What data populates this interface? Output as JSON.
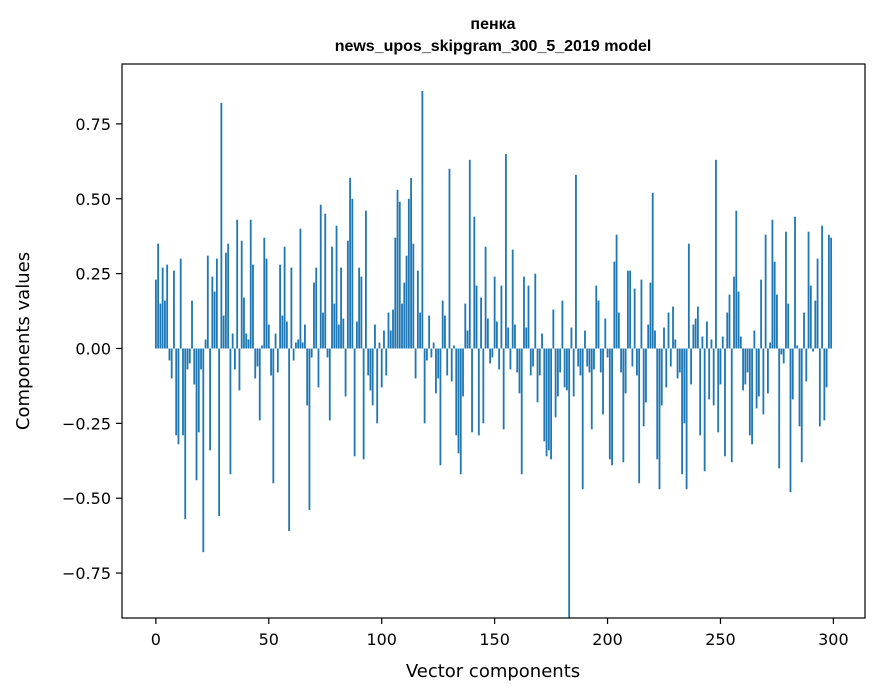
{
  "chart_data": {
    "type": "bar",
    "title": "пенка",
    "subtitle": "news_upos_skipgram_300_5_2019 model",
    "xlabel": "Vector components",
    "ylabel": "Components values",
    "xlim": [
      -15,
      314
    ],
    "ylim": [
      -0.9,
      0.95
    ],
    "x_ticks": [
      0,
      50,
      100,
      150,
      200,
      250,
      300
    ],
    "x_tick_labels": [
      "0",
      "50",
      "100",
      "150",
      "200",
      "250",
      "300"
    ],
    "y_ticks": [
      -0.75,
      -0.5,
      -0.25,
      0.0,
      0.25,
      0.5,
      0.75
    ],
    "y_tick_labels": [
      "−0.75",
      "−0.50",
      "−0.25",
      "0.00",
      "0.25",
      "0.50",
      "0.75"
    ],
    "bar_color": "#1f77b4",
    "values": [
      0.23,
      0.35,
      0.15,
      0.27,
      0.16,
      0.28,
      -0.04,
      -0.1,
      0.26,
      -0.29,
      -0.32,
      0.3,
      -0.29,
      -0.57,
      -0.07,
      -0.05,
      0.16,
      -0.12,
      -0.44,
      -0.28,
      -0.07,
      -0.68,
      0.03,
      0.31,
      -0.34,
      0.24,
      0.19,
      0.3,
      -0.56,
      0.82,
      0.11,
      0.32,
      0.35,
      -0.42,
      0.05,
      -0.07,
      0.43,
      -0.14,
      0.36,
      0.17,
      0.05,
      0.03,
      0.43,
      0.28,
      -0.1,
      -0.06,
      -0.24,
      0.01,
      0.37,
      0.3,
      0.08,
      -0.09,
      -0.45,
      0.05,
      -0.08,
      0.28,
      0.11,
      0.34,
      0.09,
      -0.61,
      0.27,
      -0.04,
      0.02,
      0.03,
      0.4,
      0.02,
      0.08,
      -0.19,
      -0.54,
      -0.03,
      0.22,
      0.27,
      -0.13,
      0.48,
      0.12,
      0.45,
      -0.03,
      -0.24,
      0.34,
      0.15,
      0.41,
      0.08,
      0.27,
      0.1,
      -0.16,
      0.36,
      0.57,
      0.5,
      -0.36,
      0.09,
      0.27,
      0.24,
      -0.37,
      0.46,
      -0.09,
      -0.14,
      -0.19,
      0.08,
      -0.25,
      0.02,
      -0.13,
      0.06,
      -0.09,
      0.12,
      0.06,
      0.13,
      0.37,
      0.53,
      0.49,
      0.15,
      0.22,
      0.31,
      0.5,
      0.57,
      0.35,
      -0.1,
      0.26,
      0.12,
      0.86,
      -0.25,
      -0.04,
      0.11,
      -0.03,
      0.02,
      -0.15,
      -0.1,
      -0.39,
      0.16,
      0.11,
      -0.09,
      0.6,
      -0.11,
      0.01,
      -0.29,
      -0.35,
      -0.42,
      -0.16,
      0.15,
      0.06,
      0.63,
      -0.28,
      0.44,
      0.21,
      -0.29,
      0.17,
      -0.25,
      0.34,
      0.1,
      -0.05,
      -0.03,
      0.24,
      0.09,
      -0.07,
      0.21,
      -0.27,
      0.65,
      0.07,
      -0.07,
      0.33,
      0.08,
      -0.08,
      -0.15,
      -0.42,
      0.24,
      0.07,
      0.21,
      -0.09,
      -0.06,
      0.25,
      -0.18,
      -0.09,
      0.05,
      -0.31,
      -0.36,
      -0.34,
      -0.37,
      0.13,
      -0.23,
      -0.16,
      -0.08,
      0.16,
      -0.13,
      -0.14,
      -0.9,
      0.07,
      -0.16,
      0.58,
      -0.06,
      -0.09,
      -0.47,
      0.06,
      -0.06,
      -0.08,
      -0.27,
      -0.07,
      0.21,
      0.16,
      -0.08,
      -0.22,
      0.1,
      -0.03,
      -0.37,
      -0.39,
      0.29,
      0.38,
      0.12,
      -0.08,
      -0.38,
      -0.15,
      0.26,
      0.26,
      -0.06,
      0.2,
      -0.09,
      -0.45,
      0.23,
      -0.26,
      -0.18,
      0.08,
      0.22,
      0.52,
      0.06,
      -0.37,
      -0.47,
      -0.19,
      0.07,
      -0.13,
      0.12,
      -0.06,
      0.14,
      0.03,
      -0.1,
      -0.08,
      -0.42,
      -0.25,
      -0.47,
      0.35,
      -0.12,
      0.08,
      0.1,
      0.14,
      -0.29,
      0.04,
      -0.41,
      0.09,
      -0.17,
      0.03,
      -0.19,
      0.63,
      -0.28,
      -0.12,
      0.04,
      -0.36,
      0.12,
      0.18,
      -0.38,
      0.24,
      0.46,
      0.19,
      0.04,
      -0.14,
      -0.12,
      -0.08,
      -0.29,
      -0.32,
      0.06,
      -0.2,
      -0.16,
      0.23,
      -0.22,
      0.38,
      -0.15,
      0.02,
      0.43,
      0.29,
      0.18,
      -0.4,
      -0.02,
      -0.05,
      0.39,
      0.15,
      -0.48,
      -0.17,
      0.44,
      0.01,
      -0.26,
      -0.38,
      0.12,
      -0.11,
      0.39,
      0.21,
      -0.01,
      0.16,
      0.3,
      -0.26,
      0.41,
      -0.24,
      -0.13,
      0.38,
      0.37
    ]
  }
}
